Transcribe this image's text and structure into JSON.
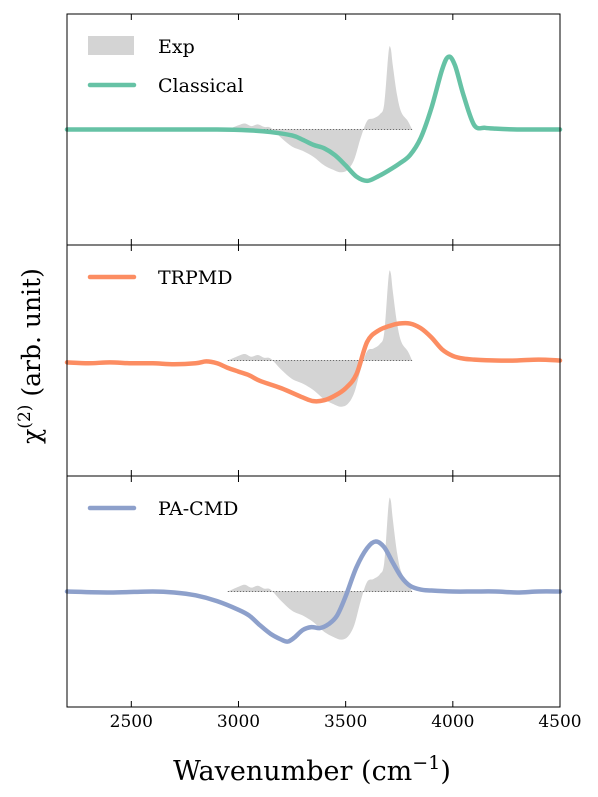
{
  "chart_data": {
    "type": "line",
    "xlabel": "Wavenumber",
    "xlabel_unit": "(cm",
    "xlabel_unit_exp": "−1",
    "xlabel_unit_close": ")",
    "ylabel_symbol": "χ",
    "ylabel_exp": "(2)",
    "ylabel_unit": " (arb. unit)",
    "xlim": [
      2200,
      4500
    ],
    "xticks": [
      2500,
      3000,
      3500,
      4000,
      4500
    ],
    "grid": false,
    "yaxis_ticks_shown": false,
    "legend_placement": "upper-left",
    "colors": {
      "exp_fill": "#d4d4d4",
      "classical": "#66c2a5",
      "trpmd": "#fc8d62",
      "pacmd": "#8da0cb",
      "baseline": "#444444"
    },
    "exp": {
      "name": "Exp",
      "x": [
        2950,
        3000,
        3030,
        3060,
        3090,
        3120,
        3150,
        3200,
        3250,
        3300,
        3350,
        3400,
        3450,
        3480,
        3510,
        3540,
        3570,
        3600,
        3630,
        3660,
        3680,
        3700,
        3710,
        3720,
        3740,
        3760,
        3790,
        3810
      ],
      "y": [
        0.0,
        0.05,
        0.07,
        0.04,
        0.06,
        0.03,
        0.02,
        -0.1,
        -0.2,
        -0.25,
        -0.32,
        -0.42,
        -0.48,
        -0.5,
        -0.47,
        -0.35,
        -0.1,
        0.1,
        0.13,
        0.18,
        0.3,
        0.9,
        0.95,
        0.75,
        0.4,
        0.2,
        0.1,
        0.0
      ]
    },
    "panels": [
      {
        "name": "Classical",
        "ylim": [
          -1.35,
          1.35
        ],
        "x": [
          2200,
          2600,
          2900,
          3050,
          3150,
          3250,
          3300,
          3350,
          3400,
          3450,
          3500,
          3550,
          3600,
          3650,
          3700,
          3750,
          3800,
          3850,
          3900,
          3950,
          3980,
          4010,
          4050,
          4100,
          4150,
          4200,
          4300,
          4400,
          4500
        ],
        "y": [
          0.0,
          0.0,
          0.0,
          -0.01,
          -0.03,
          -0.07,
          -0.12,
          -0.18,
          -0.22,
          -0.3,
          -0.42,
          -0.55,
          -0.6,
          -0.55,
          -0.48,
          -0.4,
          -0.3,
          -0.1,
          0.25,
          0.7,
          0.85,
          0.75,
          0.4,
          0.05,
          0.02,
          0.01,
          0.0,
          0.0,
          0.0
        ]
      },
      {
        "name": "TRPMD",
        "ylim": [
          -1.25,
          1.25
        ],
        "x": [
          2200,
          2300,
          2400,
          2500,
          2600,
          2700,
          2800,
          2850,
          2900,
          2950,
          3000,
          3050,
          3100,
          3200,
          3300,
          3350,
          3400,
          3450,
          3500,
          3550,
          3600,
          3650,
          3700,
          3750,
          3800,
          3850,
          3900,
          3950,
          4000,
          4050,
          4100,
          4200,
          4300,
          4400,
          4500
        ],
        "y": [
          -0.02,
          -0.03,
          -0.02,
          -0.03,
          -0.03,
          -0.04,
          -0.03,
          -0.01,
          -0.03,
          -0.08,
          -0.12,
          -0.16,
          -0.22,
          -0.3,
          -0.4,
          -0.44,
          -0.43,
          -0.38,
          -0.3,
          -0.15,
          0.2,
          0.32,
          0.37,
          0.4,
          0.4,
          0.35,
          0.25,
          0.12,
          0.05,
          0.02,
          0.01,
          0.0,
          0.0,
          0.01,
          0.0
        ]
      },
      {
        "name": "PA-CMD",
        "ylim": [
          -1.2,
          1.2
        ],
        "x": [
          2200,
          2400,
          2600,
          2700,
          2800,
          2900,
          3000,
          3050,
          3100,
          3150,
          3200,
          3230,
          3260,
          3300,
          3340,
          3380,
          3420,
          3460,
          3500,
          3550,
          3600,
          3640,
          3680,
          3720,
          3760,
          3800,
          3850,
          3900,
          4000,
          4100,
          4200,
          4300,
          4400,
          4500
        ],
        "y": [
          0.0,
          -0.01,
          0.0,
          -0.01,
          -0.04,
          -0.1,
          -0.19,
          -0.25,
          -0.35,
          -0.44,
          -0.5,
          -0.52,
          -0.48,
          -0.4,
          -0.37,
          -0.38,
          -0.34,
          -0.25,
          -0.05,
          0.25,
          0.45,
          0.52,
          0.46,
          0.3,
          0.15,
          0.06,
          0.02,
          0.01,
          0.0,
          0.0,
          0.0,
          -0.01,
          0.0,
          0.0
        ]
      }
    ]
  }
}
